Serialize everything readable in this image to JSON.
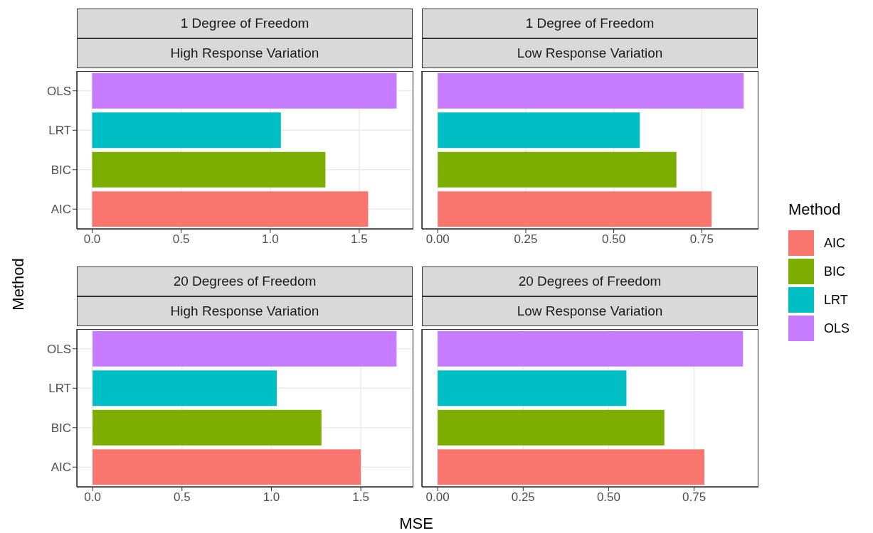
{
  "chart_data": [
    {
      "type": "bar",
      "orientation": "horizontal",
      "stacked": true,
      "title": "1 Degree of Freedom",
      "subtitle": "High Response Variation",
      "ylabel": "Method",
      "categories": [
        "OLS",
        "LRT",
        "BIC",
        "AIC"
      ],
      "series": [
        {
          "color": "#f8766d",
          "values": [
            null,
            null,
            null,
            1.55
          ]
        },
        {
          "color": "#7cae00",
          "values": [
            null,
            null,
            1.31,
            null
          ]
        },
        {
          "color": "#00bfc4",
          "values": [
            null,
            1.06,
            null,
            null
          ]
        },
        {
          "color": "#c77cff",
          "values": [
            1.71,
            null,
            null,
            null
          ]
        }
      ],
      "xlim": [
        -0.086,
        1.8
      ],
      "xticks": [
        {
          "value": 0,
          "label": "0.0"
        },
        {
          "value": 0.5,
          "label": "0.5"
        },
        {
          "value": 1,
          "label": "1.0"
        },
        {
          "value": 1.5,
          "label": "1.5"
        }
      ],
      "grid": true
    },
    {
      "type": "bar",
      "orientation": "horizontal",
      "stacked": true,
      "title": "1 Degree of Freedom",
      "subtitle": "Low Response Variation",
      "categories": [
        null,
        null,
        null,
        null
      ],
      "series": [
        {
          "name": "AIC",
          "color": "#f8766d",
          "values": [
            null,
            null,
            null,
            0.778
          ]
        },
        {
          "name": "BIC",
          "color": "#7cae00",
          "values": [
            null,
            null,
            0.678,
            null
          ]
        },
        {
          "name": "LRT",
          "color": "#00bfc4",
          "values": [
            null,
            0.574,
            null,
            null
          ]
        },
        {
          "name": "OLS",
          "color": "#c77cff",
          "values": [
            0.869,
            null,
            null,
            null
          ]
        }
      ],
      "xlim": [
        -0.045,
        0.909
      ],
      "xticks": [
        {
          "value": 0,
          "label": "0.00"
        },
        {
          "value": 0.25,
          "label": "0.25"
        },
        {
          "value": 0.5,
          "label": "0.50"
        },
        {
          "value": 0.75,
          "label": "0.75"
        }
      ],
      "grid": true,
      "tick_labels": "x",
      "legend": "right",
      "legend_title": "Method"
    },
    {
      "type": "bar",
      "orientation": "horizontal",
      "stacked": true,
      "title": "20 Degrees of Freedom",
      "subtitle": "High Response Variation",
      "xlabel": "MSE",
      "categories": [
        "OLS",
        "LRT",
        "BIC",
        "AIC"
      ],
      "series": [
        {
          "color": "#f8766d",
          "values": [
            null,
            null,
            null,
            1.5
          ]
        },
        {
          "color": "#7cae00",
          "values": [
            null,
            null,
            1.28,
            null
          ]
        },
        {
          "color": "#00bfc4",
          "values": [
            null,
            1.03,
            null,
            null
          ]
        },
        {
          "color": "#c77cff",
          "values": [
            1.7,
            null,
            null,
            null
          ]
        }
      ],
      "xlim": [
        -0.088,
        1.79
      ],
      "xticks": [
        {
          "value": 0,
          "label": "0.0"
        },
        {
          "value": 0.5,
          "label": "0.5"
        },
        {
          "value": 1,
          "label": "1.0"
        },
        {
          "value": 1.5,
          "label": "1.5"
        }
      ],
      "grid": true
    },
    {
      "type": "bar",
      "orientation": "horizontal",
      "stacked": true,
      "title": "20 Degrees of Freedom",
      "subtitle": "Low Response Variation",
      "categories": [
        null,
        null,
        null,
        null
      ],
      "series": [
        {
          "color": "#f8766d",
          "values": [
            null,
            null,
            null,
            0.78
          ]
        },
        {
          "color": "#7cae00",
          "values": [
            null,
            null,
            0.663,
            null
          ]
        },
        {
          "color": "#00bfc4",
          "values": [
            null,
            0.552,
            null,
            null
          ]
        },
        {
          "color": "#c77cff",
          "values": [
            0.893,
            null,
            null,
            null
          ]
        }
      ],
      "xlim": [
        -0.046,
        0.936
      ],
      "xticks": [
        {
          "value": 0,
          "label": "0.00"
        },
        {
          "value": 0.25,
          "label": "0.25"
        },
        {
          "value": 0.5,
          "label": "0.50"
        },
        {
          "value": 0.75,
          "label": "0.75"
        }
      ],
      "grid": true,
      "tick_labels": "x"
    }
  ]
}
